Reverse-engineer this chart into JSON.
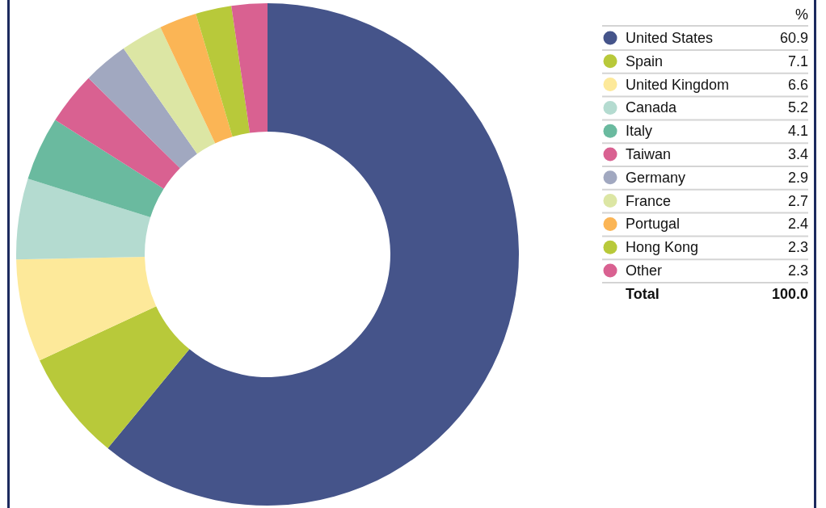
{
  "chart_data": {
    "type": "donut",
    "legend_title": "%",
    "categories": [
      "United States",
      "Spain",
      "United Kingdom",
      "Canada",
      "Italy",
      "Taiwan",
      "Germany",
      "France",
      "Portugal",
      "Hong Kong",
      "Other"
    ],
    "values": [
      60.9,
      7.1,
      6.6,
      5.2,
      4.1,
      3.4,
      2.9,
      2.7,
      2.4,
      2.3,
      2.3
    ],
    "colors": [
      "#45548a",
      "#b8c93a",
      "#fde99a",
      "#b4dbd0",
      "#6aba9f",
      "#d96191",
      "#a1a8c0",
      "#dce6a4",
      "#fbb555",
      "#b8c93a",
      "#d96191"
    ],
    "legend": "right",
    "data_labels": true,
    "annotations": [
      "Total",
      "100.0"
    ]
  }
}
